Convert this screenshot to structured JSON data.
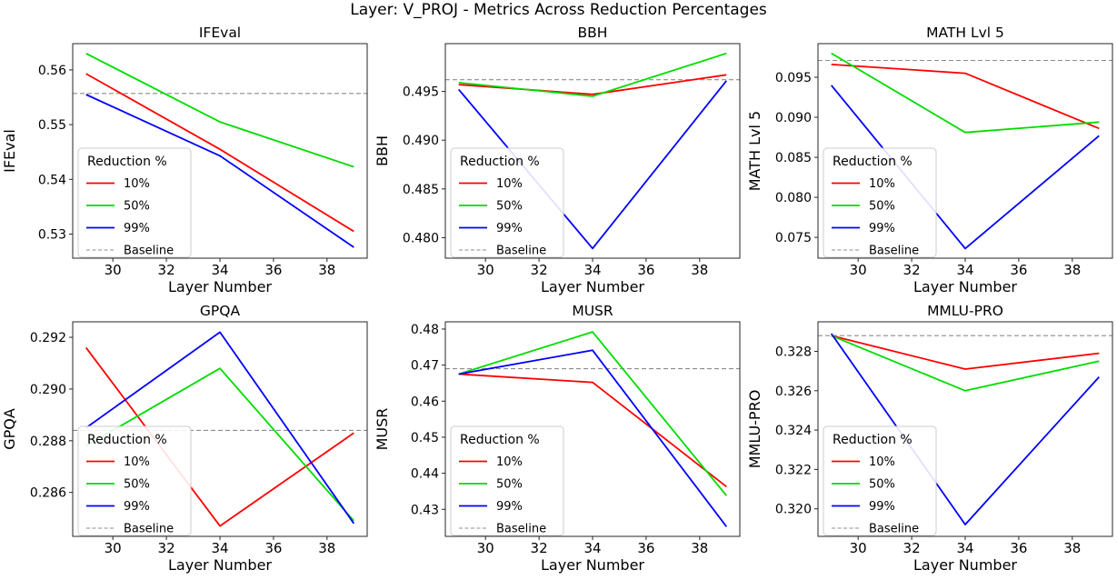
{
  "figure": {
    "title": "Layer: V_PROJ - Metrics Across Reduction Percentages",
    "background": "#ffffff",
    "spine_color": "#262626",
    "baseline_color": "#8c8c8c",
    "legend_title": "Reduction %",
    "baseline_label": "Baseline",
    "series_colors": {
      "10%": "#ff0000",
      "50%": "#00dd00",
      "99%": "#0000ff"
    }
  },
  "chart_data": [
    {
      "type": "line",
      "title": "IFEval",
      "xlabel": "Layer Number",
      "ylabel": "IFEval",
      "x": [
        29,
        34,
        39
      ],
      "xlim": [
        28.5,
        39.5
      ],
      "xticks": [
        30,
        32,
        34,
        36,
        38
      ],
      "ylim": [
        0.5256,
        0.5648
      ],
      "yticks": [
        0.53,
        0.54,
        0.55,
        0.56
      ],
      "ytick_decimals": 2,
      "baseline": 0.5557,
      "legend_position": "lower left",
      "series": [
        {
          "name": "10%",
          "color": "#ff0000",
          "values": [
            0.5593,
            0.5455,
            0.5305
          ]
        },
        {
          "name": "50%",
          "color": "#00dd00",
          "values": [
            0.563,
            0.5505,
            0.5423
          ]
        },
        {
          "name": "99%",
          "color": "#0000ff",
          "values": [
            0.5555,
            0.5443,
            0.5276
          ]
        }
      ]
    },
    {
      "type": "line",
      "title": "BBH",
      "xlabel": "Layer Number",
      "ylabel": "BBH",
      "x": [
        29,
        34,
        39
      ],
      "xlim": [
        28.5,
        39.5
      ],
      "xticks": [
        30,
        32,
        34,
        36,
        38
      ],
      "ylim": [
        0.4779,
        0.4999
      ],
      "yticks": [
        0.48,
        0.485,
        0.49,
        0.495
      ],
      "ytick_decimals": 3,
      "baseline": 0.4962,
      "legend_position": "lower left",
      "series": [
        {
          "name": "10%",
          "color": "#ff0000",
          "values": [
            0.4957,
            0.4947,
            0.4967
          ]
        },
        {
          "name": "50%",
          "color": "#00dd00",
          "values": [
            0.4959,
            0.4945,
            0.4989
          ]
        },
        {
          "name": "99%",
          "color": "#0000ff",
          "values": [
            0.4952,
            0.4789,
            0.4961
          ]
        }
      ]
    },
    {
      "type": "line",
      "title": "MATH Lvl 5",
      "xlabel": "Layer Number",
      "ylabel": "MATH Lvl 5",
      "x": [
        29,
        34,
        39
      ],
      "xlim": [
        28.5,
        39.5
      ],
      "xticks": [
        30,
        32,
        34,
        36,
        38
      ],
      "ylim": [
        0.0724,
        0.0992
      ],
      "yticks": [
        0.075,
        0.08,
        0.085,
        0.09,
        0.095
      ],
      "ytick_decimals": 3,
      "baseline": 0.0971,
      "legend_position": "lower left",
      "series": [
        {
          "name": "10%",
          "color": "#ff0000",
          "values": [
            0.0966,
            0.0955,
            0.0886
          ]
        },
        {
          "name": "50%",
          "color": "#00dd00",
          "values": [
            0.098,
            0.0881,
            0.0894
          ]
        },
        {
          "name": "99%",
          "color": "#0000ff",
          "values": [
            0.094,
            0.0736,
            0.0877
          ]
        }
      ]
    },
    {
      "type": "line",
      "title": "GPQA",
      "xlabel": "Layer Number",
      "ylabel": "GPQA",
      "x": [
        29,
        34,
        39
      ],
      "xlim": [
        28.5,
        39.5
      ],
      "xticks": [
        30,
        32,
        34,
        36,
        38
      ],
      "ylim": [
        0.2843,
        0.2926
      ],
      "yticks": [
        0.286,
        0.288,
        0.29,
        0.292
      ],
      "ytick_decimals": 3,
      "baseline": 0.2884,
      "legend_position": "lower left",
      "series": [
        {
          "name": "10%",
          "color": "#ff0000",
          "values": [
            0.2916,
            0.2847,
            0.2883
          ]
        },
        {
          "name": "50%",
          "color": "#00dd00",
          "values": [
            0.2878,
            0.2908,
            0.2849
          ]
        },
        {
          "name": "99%",
          "color": "#0000ff",
          "values": [
            0.2885,
            0.2922,
            0.2848
          ]
        }
      ]
    },
    {
      "type": "line",
      "title": "MUSR",
      "xlabel": "Layer Number",
      "ylabel": "MUSR",
      "x": [
        29,
        34,
        39
      ],
      "xlim": [
        28.5,
        39.5
      ],
      "xticks": [
        30,
        32,
        34,
        36,
        38
      ],
      "ylim": [
        0.4225,
        0.482
      ],
      "yticks": [
        0.43,
        0.44,
        0.45,
        0.46,
        0.47,
        0.48
      ],
      "ytick_decimals": 2,
      "baseline": 0.469,
      "legend_position": "lower left",
      "series": [
        {
          "name": "10%",
          "color": "#ff0000",
          "values": [
            0.4675,
            0.4652,
            0.4363
          ]
        },
        {
          "name": "50%",
          "color": "#00dd00",
          "values": [
            0.4675,
            0.4792,
            0.4338
          ]
        },
        {
          "name": "99%",
          "color": "#0000ff",
          "values": [
            0.4675,
            0.4741,
            0.4252
          ]
        }
      ]
    },
    {
      "type": "line",
      "title": "MMLU-PRO",
      "xlabel": "Layer Number",
      "ylabel": "MMLU-PRO",
      "x": [
        29,
        34,
        39
      ],
      "xlim": [
        28.5,
        39.5
      ],
      "xticks": [
        30,
        32,
        34,
        36,
        38
      ],
      "ylim": [
        0.3186,
        0.3295
      ],
      "yticks": [
        0.32,
        0.322,
        0.324,
        0.326,
        0.328
      ],
      "ytick_decimals": 3,
      "baseline": 0.3288,
      "legend_position": "lower left",
      "series": [
        {
          "name": "10%",
          "color": "#ff0000",
          "values": [
            0.3288,
            0.3271,
            0.3279
          ]
        },
        {
          "name": "50%",
          "color": "#00dd00",
          "values": [
            0.3288,
            0.326,
            0.3275
          ]
        },
        {
          "name": "99%",
          "color": "#0000ff",
          "values": [
            0.3289,
            0.3192,
            0.3267
          ]
        }
      ]
    }
  ]
}
